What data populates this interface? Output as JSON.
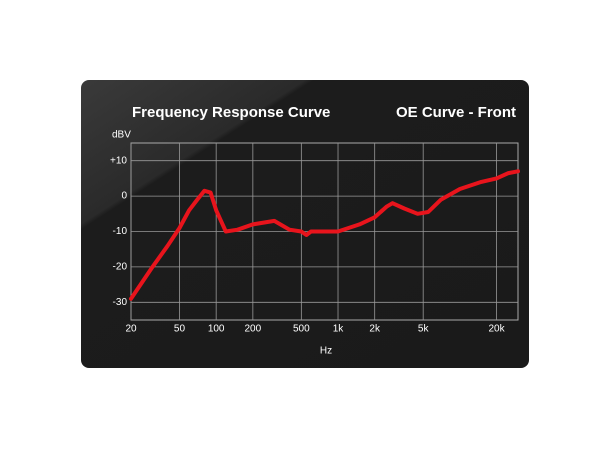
{
  "chart_data": {
    "type": "line",
    "title": "Frequency Response Curve",
    "subtitle": "OE Curve - Front",
    "y_label": "dBV",
    "x_label": "Hz",
    "x_scale": "log",
    "grid": true,
    "xlim": [
      20,
      30000
    ],
    "xticks": [
      20,
      50,
      100,
      200,
      500,
      {
        "value": 1000,
        "label": "1k"
      },
      {
        "value": 2000,
        "label": "2k"
      },
      {
        "value": 5000,
        "label": "5k"
      },
      {
        "value": 20000,
        "label": "20k"
      }
    ],
    "ylim": [
      -35,
      15
    ],
    "yticks": [
      {
        "value": 10,
        "label": "+10"
      },
      0,
      -10,
      -20,
      -30
    ],
    "x": [
      20,
      30,
      40,
      50,
      60,
      70,
      80,
      90,
      100,
      120,
      150,
      200,
      300,
      400,
      500,
      550,
      600,
      800,
      1000,
      1500,
      2000,
      2500,
      2800,
      3500,
      4500,
      5500,
      7000,
      10000,
      15000,
      20000,
      25000,
      30000
    ],
    "series": [
      {
        "name": "OE Curve - Front",
        "color": "#e8141c",
        "values": [
          -29,
          -20,
          -14,
          -9,
          -4,
          -1,
          1.5,
          1,
          -4,
          -10,
          -9.5,
          -8,
          -7,
          -9.5,
          -10,
          -11,
          -10,
          -10,
          -10,
          -8,
          -6,
          -3,
          -2,
          -3.5,
          -5,
          -4.5,
          -1,
          2,
          4,
          5,
          6.5,
          7
        ]
      }
    ]
  }
}
